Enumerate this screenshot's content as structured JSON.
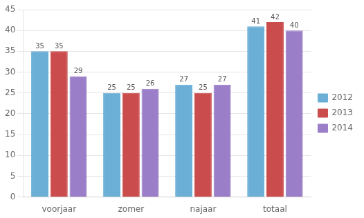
{
  "chart_data": {
    "type": "bar",
    "categories": [
      "voorjaar",
      "zomer",
      "najaar",
      "totaal"
    ],
    "series": [
      {
        "name": "2012",
        "color": "#6BAED6",
        "values": [
          35,
          25,
          27,
          41
        ]
      },
      {
        "name": "2013",
        "color": "#CB4C4C",
        "values": [
          35,
          25,
          25,
          42
        ]
      },
      {
        "name": "2014",
        "color": "#9B7EC8",
        "values": [
          29,
          26,
          27,
          40
        ]
      }
    ],
    "ylim": [
      0,
      45
    ],
    "yticks": [
      0,
      5,
      10,
      15,
      20,
      25,
      30,
      35,
      40,
      45
    ],
    "grid": true,
    "legend": "right",
    "data_labels": true
  }
}
